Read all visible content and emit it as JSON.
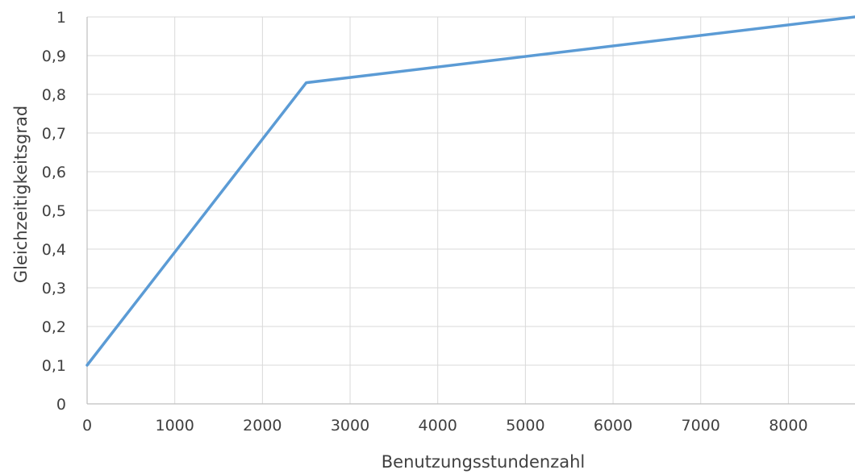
{
  "chart_data": {
    "type": "line",
    "xlabel": "Benutzungsstundenzahl",
    "ylabel": "Gleichzeitigkeitsgrad",
    "xlim": [
      0,
      8760
    ],
    "ylim": [
      0,
      1
    ],
    "x_ticks": [
      0,
      1000,
      2000,
      3000,
      4000,
      5000,
      6000,
      7000,
      8000
    ],
    "x_tick_labels": [
      "0",
      "1000",
      "2000",
      "3000",
      "4000",
      "5000",
      "6000",
      "7000",
      "8000"
    ],
    "y_ticks": [
      0,
      0.1,
      0.2,
      0.3,
      0.4,
      0.5,
      0.6,
      0.7,
      0.8,
      0.9,
      1
    ],
    "y_tick_labels": [
      "0",
      "0,1",
      "0,2",
      "0,3",
      "0,4",
      "0,5",
      "0,6",
      "0,7",
      "0,8",
      "0,9",
      "1"
    ],
    "grid": true,
    "legend": "none",
    "series": [
      {
        "color": "#5b9bd5",
        "x": [
          0,
          2500,
          8760
        ],
        "y": [
          0.1,
          0.83,
          1.0
        ]
      }
    ]
  }
}
